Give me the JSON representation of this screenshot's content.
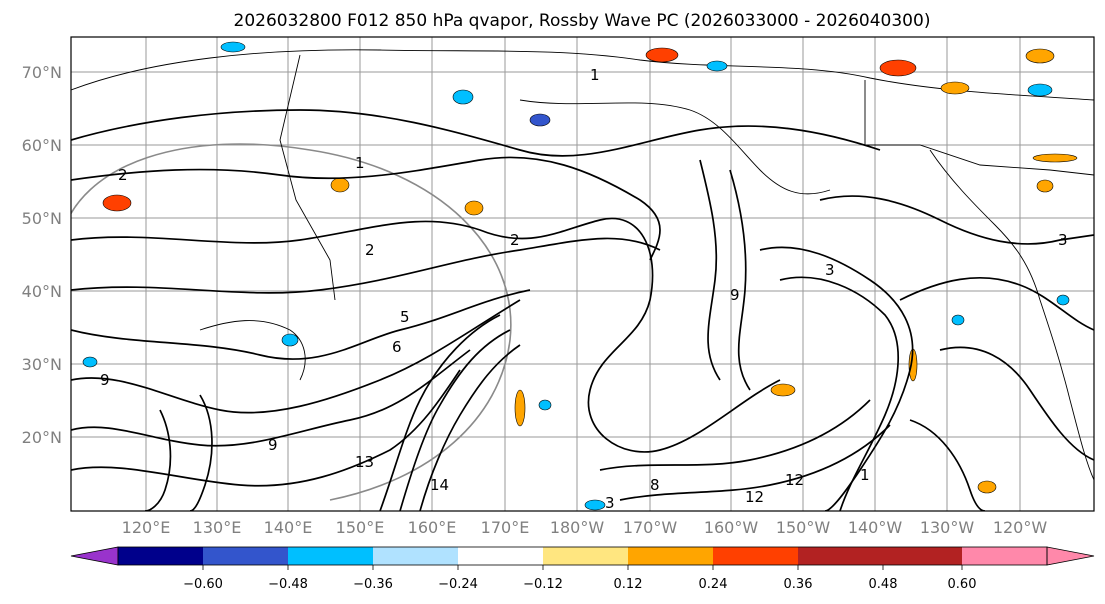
{
  "title": "2026032800 F012 850 hPa qvapor, Rossby Wave PC (2026033000 - 2026040300)",
  "map": {
    "lat_labels": [
      "70°N",
      "60°N",
      "50°N",
      "40°N",
      "30°N",
      "20°N"
    ],
    "lon_labels": [
      "120°E",
      "130°E",
      "140°E",
      "150°E",
      "160°E",
      "170°E",
      "180°W",
      "170°W",
      "160°W",
      "150°W",
      "140°W",
      "130°W",
      "120°W"
    ],
    "contour_labels": [
      "2",
      "1",
      "1",
      "2",
      "2",
      "3",
      "3",
      "5",
      "6",
      "9",
      "9",
      "9",
      "12",
      "12",
      "13",
      "14",
      "8",
      "3",
      "1"
    ]
  },
  "colorbar": {
    "colors": [
      "#9933cc",
      "#00008b",
      "#3355cc",
      "#00bfff",
      "#b0e2ff",
      "#ffffff",
      "#ffe680",
      "#ffa500",
      "#ff4000",
      "#b22222",
      "#ff88aa"
    ],
    "tick_labels": [
      "−0.60",
      "−0.48",
      "−0.36",
      "−0.24",
      "−0.12",
      "0.12",
      "0.24",
      "0.36",
      "0.48",
      "0.60"
    ]
  },
  "style": {
    "line_color": "#000000",
    "grid_color": "#808080"
  }
}
